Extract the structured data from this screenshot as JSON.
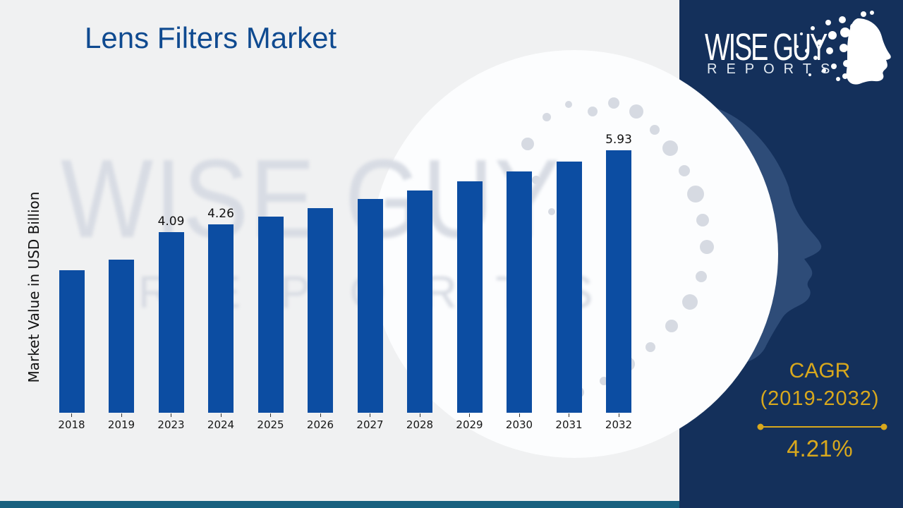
{
  "page": {
    "background": "#f0f1f2"
  },
  "header": {
    "title": "Lens Filters Market",
    "title_color": "#0f4a90"
  },
  "chart_data": {
    "type": "bar",
    "title": "Lens Filters Market",
    "xlabel": "",
    "ylabel": "Market Value in USD Billion",
    "categories": [
      "2018",
      "2019",
      "2023",
      "2024",
      "2025",
      "2026",
      "2027",
      "2028",
      "2029",
      "2030",
      "2031",
      "2032"
    ],
    "values": [
      3.23,
      3.47,
      4.09,
      4.26,
      4.44,
      4.63,
      4.83,
      5.03,
      5.24,
      5.46,
      5.69,
      5.93
    ],
    "bar_labels": [
      "",
      "",
      "4.09",
      "4.26",
      "",
      "",
      "",
      "",
      "",
      "",
      "",
      "5.93"
    ],
    "bar_color": "#0c4da2",
    "ylim": [
      0,
      6.4
    ],
    "grid": false,
    "legend": false
  },
  "watermark": {
    "line1": "WISE GUY",
    "line2": "REPORTS"
  },
  "brand": {
    "line1": "WISE GUY",
    "line2": "REPORTS",
    "panel_color": "#14305b",
    "accent_gold": "#d8a81d"
  },
  "cagr": {
    "label": "CAGR",
    "range": "(2019-2032)",
    "value": "4.21%"
  },
  "footer": {
    "strip_color": "#18607f"
  }
}
